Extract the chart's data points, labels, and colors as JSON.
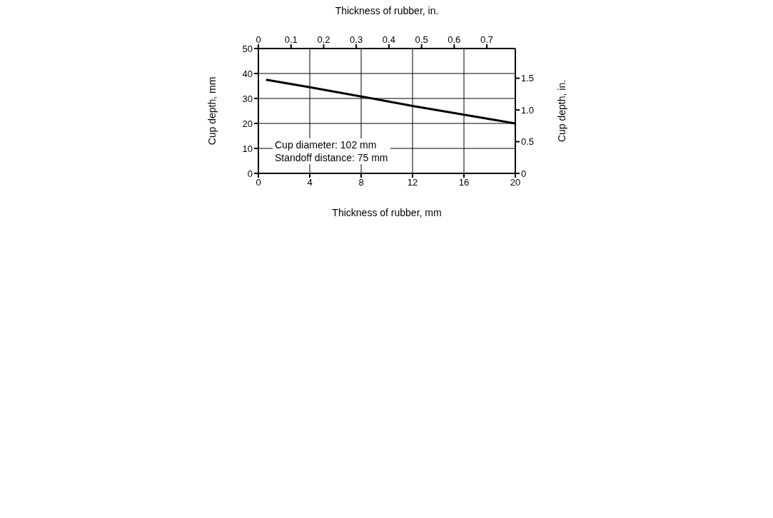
{
  "chart_data": {
    "type": "line",
    "xlabel": "Thickness of rubber, mm",
    "ylabel": "Cup depth, mm",
    "x2label": "Thickness of rubber, in.",
    "y2label": "Cup depth, in.",
    "x": [
      0.6,
      4,
      8,
      12,
      16,
      20
    ],
    "series": [
      {
        "color": "#000000",
        "values": [
          37.5,
          34.5,
          30.8,
          27,
          23.5,
          20
        ]
      }
    ],
    "xlim": [
      0,
      20
    ],
    "xticks": [
      0,
      4,
      8,
      12,
      16,
      20
    ],
    "ylim": [
      0,
      50
    ],
    "yticks": [
      0,
      10,
      20,
      30,
      40,
      50
    ],
    "x2lim": [
      0,
      0.7874
    ],
    "x2ticks": [
      0,
      0.1,
      0.2,
      0.3,
      0.4,
      0.5,
      0.6,
      0.7
    ],
    "y2lim": [
      0,
      1.9685
    ],
    "y2ticks": [
      0,
      0.5,
      {
        "value": 1,
        "label": "1.0"
      },
      1.5
    ],
    "annotations": [
      "Cup diameter: 102 mm",
      "Standoff distance: 75 mm"
    ],
    "grid": true
  }
}
